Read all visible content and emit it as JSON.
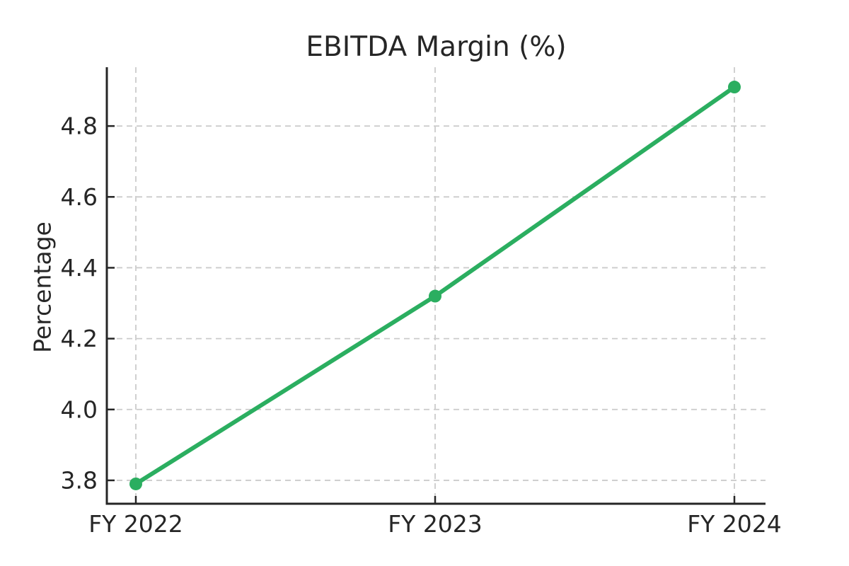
{
  "chart_data": {
    "type": "line",
    "title": "EBITDA Margin (%)",
    "xlabel": "",
    "ylabel": "Percentage",
    "categories": [
      "FY 2022",
      "FY 2023",
      "FY 2024"
    ],
    "series": [
      {
        "name": "EBITDA Margin",
        "values": [
          3.79,
          4.32,
          4.91
        ]
      }
    ],
    "ytick_labels": [
      "3.8",
      "4.0",
      "4.2",
      "4.4",
      "4.6",
      "4.8"
    ],
    "ytick_values": [
      3.8,
      4.0,
      4.2,
      4.4,
      4.6,
      4.8
    ],
    "ylim": [
      3.734,
      4.966
    ],
    "grid": "dashed",
    "legend": "none",
    "colors": {
      "line": "#2bae60",
      "marker": "#2bae60",
      "grid": "#cbcbcb",
      "spine": "#262626",
      "text": "#262626",
      "background": "#ffffff"
    }
  }
}
